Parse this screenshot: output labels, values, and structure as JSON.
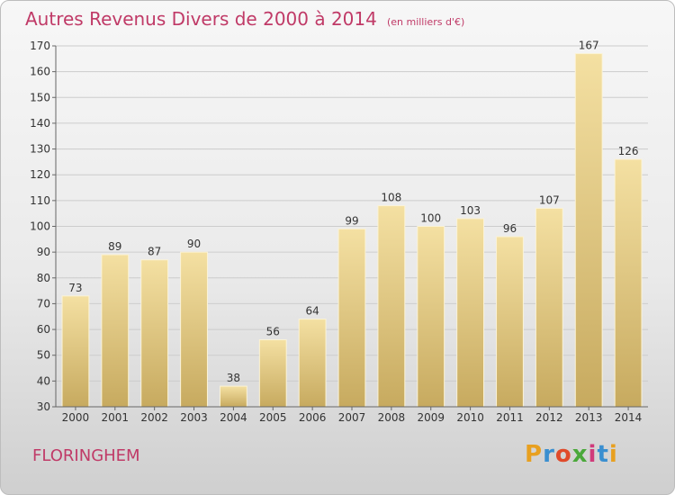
{
  "header": {
    "title": "Autres Revenus Divers de 2000 à 2014",
    "unit": "(en milliers d'€)"
  },
  "footer": {
    "commune": "FLORINGHEM",
    "logo_text": "Proxiti",
    "logo_colors": [
      "#e8a020",
      "#3a8fd0",
      "#e04a2a",
      "#4aa83a",
      "#d03a7a",
      "#3a8fd0",
      "#e8a020"
    ]
  },
  "colors": {
    "bar_top": "#f4e0a2",
    "bar_bottom": "#c7aa5f",
    "grid": "#cccccc",
    "title": "#c03a67"
  },
  "chart_data": {
    "type": "bar",
    "title": "Autres Revenus Divers de 2000 à 2014",
    "subtitle": "(en milliers d'€)",
    "categories": [
      "2000",
      "2001",
      "2002",
      "2003",
      "2004",
      "2005",
      "2006",
      "2007",
      "2008",
      "2009",
      "2010",
      "2011",
      "2012",
      "2013",
      "2014"
    ],
    "values": [
      73,
      89,
      87,
      90,
      38,
      56,
      64,
      99,
      108,
      100,
      103,
      96,
      107,
      167,
      126
    ],
    "ylim": [
      30,
      170
    ],
    "yticks": [
      30,
      40,
      50,
      60,
      70,
      80,
      90,
      100,
      110,
      120,
      130,
      140,
      150,
      160,
      170
    ],
    "grid": true,
    "xlabel": "",
    "ylabel": ""
  }
}
